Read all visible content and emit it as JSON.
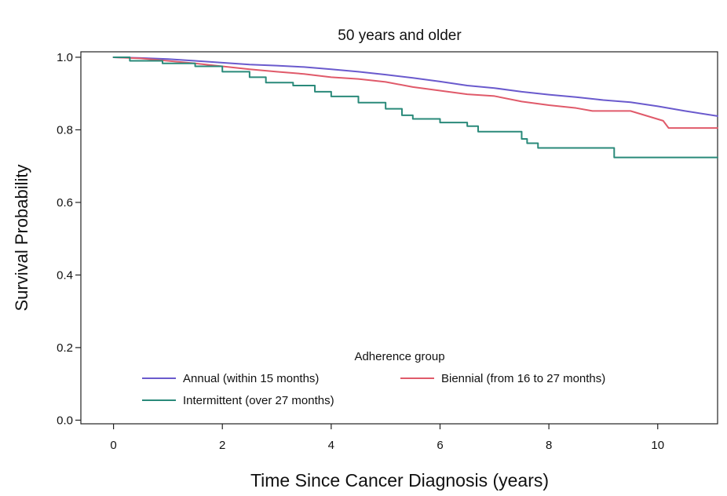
{
  "chart_data": {
    "type": "line",
    "title": "50 years and older",
    "xlabel": "Time Since Cancer Diagnosis (years)",
    "ylabel": "Survival Probability",
    "xlim": [
      -0.6,
      11.1
    ],
    "ylim": [
      -0.01,
      1.015
    ],
    "xticks": [
      "0",
      "2",
      "4",
      "6",
      "8",
      "10"
    ],
    "yticks": [
      "0.0",
      "0.2",
      "0.4",
      "0.6",
      "0.8",
      "1.0"
    ],
    "grid": false,
    "legend": {
      "title": "Adherence group",
      "placement": "bottom-inside"
    },
    "series": [
      {
        "name": "Annual (within 15 months)",
        "color": "#6a5acd",
        "step": false,
        "points": [
          [
            0,
            1.0
          ],
          [
            0.5,
            0.998
          ],
          [
            1,
            0.995
          ],
          [
            1.5,
            0.99
          ],
          [
            2,
            0.985
          ],
          [
            2.5,
            0.98
          ],
          [
            3,
            0.977
          ],
          [
            3.5,
            0.973
          ],
          [
            4,
            0.967
          ],
          [
            4.5,
            0.96
          ],
          [
            5,
            0.952
          ],
          [
            5.5,
            0.943
          ],
          [
            6,
            0.933
          ],
          [
            6.5,
            0.922
          ],
          [
            7,
            0.915
          ],
          [
            7.5,
            0.905
          ],
          [
            8,
            0.897
          ],
          [
            8.5,
            0.89
          ],
          [
            9,
            0.882
          ],
          [
            9.5,
            0.876
          ],
          [
            10,
            0.865
          ],
          [
            10.5,
            0.852
          ],
          [
            11.1,
            0.838
          ]
        ]
      },
      {
        "name": "Biennial (from 16 to 27 months)",
        "color": "#e05a6a",
        "step": false,
        "points": [
          [
            0,
            1.0
          ],
          [
            0.5,
            0.997
          ],
          [
            1,
            0.99
          ],
          [
            1.5,
            0.983
          ],
          [
            2,
            0.975
          ],
          [
            2.5,
            0.967
          ],
          [
            3,
            0.96
          ],
          [
            3.5,
            0.954
          ],
          [
            4,
            0.945
          ],
          [
            4.5,
            0.94
          ],
          [
            5,
            0.932
          ],
          [
            5.5,
            0.918
          ],
          [
            6,
            0.908
          ],
          [
            6.5,
            0.898
          ],
          [
            7,
            0.893
          ],
          [
            7.5,
            0.878
          ],
          [
            8,
            0.868
          ],
          [
            8.5,
            0.86
          ],
          [
            8.8,
            0.852
          ],
          [
            9.5,
            0.852
          ],
          [
            10.1,
            0.825
          ],
          [
            10.2,
            0.805
          ],
          [
            11.1,
            0.805
          ]
        ]
      },
      {
        "name": "Intermittent (over 27 months)",
        "color": "#2a8a7a",
        "step": true,
        "points": [
          [
            0,
            1.0
          ],
          [
            0.3,
            0.99
          ],
          [
            0.9,
            0.983
          ],
          [
            1.5,
            0.975
          ],
          [
            2,
            0.96
          ],
          [
            2.5,
            0.945
          ],
          [
            2.8,
            0.93
          ],
          [
            3.3,
            0.922
          ],
          [
            3.7,
            0.905
          ],
          [
            4,
            0.892
          ],
          [
            4.5,
            0.875
          ],
          [
            5,
            0.858
          ],
          [
            5.3,
            0.84
          ],
          [
            5.5,
            0.83
          ],
          [
            6,
            0.82
          ],
          [
            6.5,
            0.81
          ],
          [
            6.7,
            0.795
          ],
          [
            7.5,
            0.775
          ],
          [
            7.6,
            0.763
          ],
          [
            7.8,
            0.75
          ],
          [
            9.2,
            0.724
          ],
          [
            11.1,
            0.724
          ]
        ]
      }
    ]
  }
}
